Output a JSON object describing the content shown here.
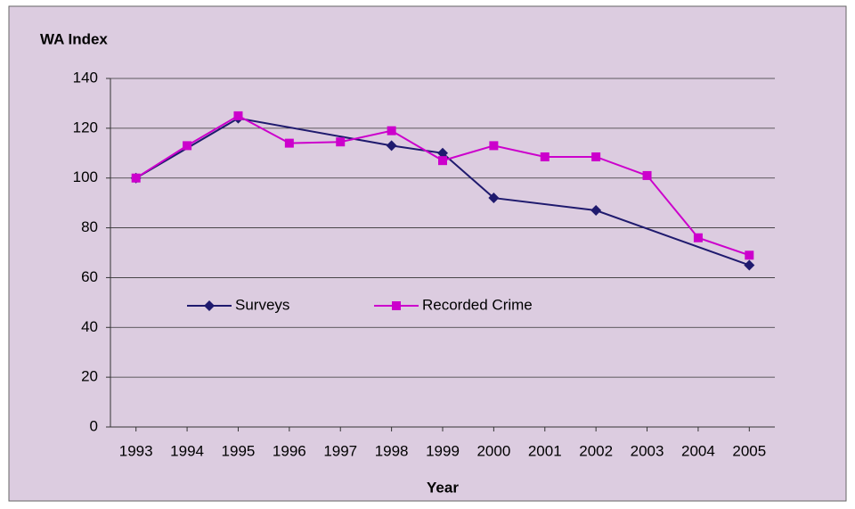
{
  "chart_data": {
    "type": "line",
    "y_label": "WA Index",
    "x_label": "Year",
    "xlim": [
      1992.5,
      2005.5
    ],
    "xticks": [
      1993,
      1994,
      1995,
      1996,
      1997,
      1998,
      1999,
      2000,
      2001,
      2002,
      2003,
      2004,
      2005
    ],
    "ylim": [
      0,
      140
    ],
    "yticks": [
      0,
      20,
      40,
      60,
      80,
      100,
      120,
      140
    ],
    "grid": true,
    "legend": "center",
    "series": [
      {
        "name": "Surveys",
        "color": "#1f1a6e",
        "marker": "diamond",
        "x": [
          1993,
          1995,
          1998,
          1999,
          2000,
          2002,
          2005
        ],
        "values": [
          100,
          124,
          113,
          110,
          92,
          87,
          65
        ]
      },
      {
        "name": "Recorded Crime",
        "color": "#cc00cc",
        "marker": "square",
        "x": [
          1993,
          1994,
          1995,
          1996,
          1997,
          1998,
          1999,
          2000,
          2001,
          2002,
          2003,
          2004,
          2005
        ],
        "values": [
          100,
          113,
          125,
          114,
          114.5,
          119,
          107,
          113,
          108.5,
          108.5,
          101,
          76,
          69
        ]
      }
    ]
  }
}
